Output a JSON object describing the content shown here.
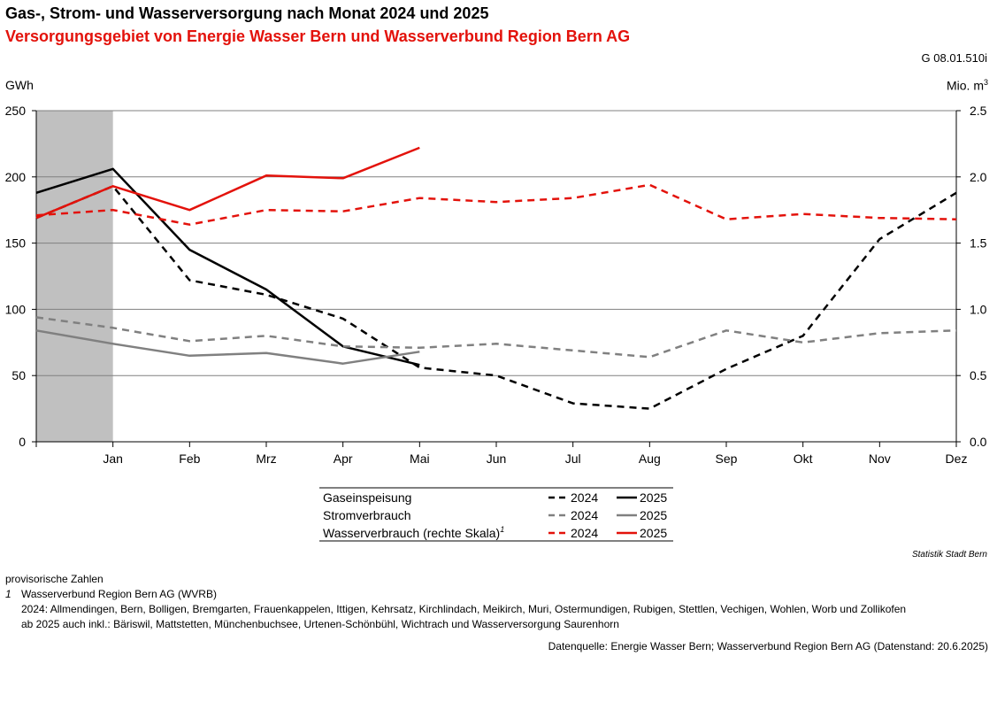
{
  "header": {
    "title": "Gas-, Strom- und Wasserversorgung nach Monat 2024 und 2025",
    "subtitle": "Versorgungsgebiet von Energie Wasser Bern und Wasserverbund Region Bern AG",
    "code": "G 08.01.510i",
    "unit_left": "GWh",
    "unit_right": "Mio. m",
    "unit_right_sup": "3"
  },
  "colors": {
    "gas": "#000000",
    "strom": "#808080",
    "wasser": "#e3120b",
    "shade": "#c0c0c0",
    "grid": "#808080"
  },
  "chart_data": {
    "type": "line",
    "x": [
      "Dez",
      "Jan",
      "Feb",
      "Mrz",
      "Apr",
      "Mai",
      "Jun",
      "Jul",
      "Aug",
      "Sep",
      "Okt",
      "Nov",
      "Dez"
    ],
    "x_tick_labels": [
      "",
      "Jan",
      "Feb",
      "Mrz",
      "Apr",
      "Mai",
      "Jun",
      "Jul",
      "Aug",
      "Sep",
      "Okt",
      "Nov",
      "Dez"
    ],
    "ylim": [
      0,
      250
    ],
    "y_ticks": [
      "0",
      "50",
      "100",
      "150",
      "200",
      "250"
    ],
    "y2lim": [
      0,
      2.5
    ],
    "y2_ticks": [
      "0.0",
      "0.5",
      "1.0",
      "1.5",
      "2.0",
      "2.5"
    ],
    "grid": true,
    "shaded_region": "Dez – Jan",
    "series": [
      {
        "name": "Gaseinspeisung 2024",
        "axis": "left",
        "style": "dashed",
        "color": "#000000",
        "values": [
          169,
          193,
          122,
          111,
          93,
          56,
          50,
          29,
          25,
          55,
          80,
          153,
          188
        ]
      },
      {
        "name": "Gaseinspeisung 2025",
        "axis": "left",
        "style": "solid",
        "color": "#000000",
        "values": [
          188,
          206,
          145,
          115,
          72,
          58,
          null,
          null,
          null,
          null,
          null,
          null,
          null
        ]
      },
      {
        "name": "Stromverbrauch 2024",
        "axis": "left",
        "style": "dashed",
        "color": "#808080",
        "values": [
          94,
          86,
          76,
          80,
          72,
          71,
          74,
          69,
          64,
          84,
          75,
          82,
          84
        ]
      },
      {
        "name": "Stromverbrauch 2025",
        "axis": "left",
        "style": "solid",
        "color": "#808080",
        "values": [
          84,
          74,
          65,
          67,
          59,
          68,
          null,
          null,
          null,
          null,
          null,
          null,
          null
        ]
      },
      {
        "name": "Wasserverbrauch 2024",
        "axis": "right",
        "style": "dashed",
        "color": "#e3120b",
        "values": [
          1.71,
          1.75,
          1.64,
          1.75,
          1.74,
          1.84,
          1.81,
          1.84,
          1.94,
          1.68,
          1.72,
          1.69,
          1.68
        ]
      },
      {
        "name": "Wasserverbrauch 2025",
        "axis": "right",
        "style": "solid",
        "color": "#e3120b",
        "values": [
          1.69,
          1.93,
          1.75,
          2.01,
          1.99,
          2.22,
          null,
          null,
          null,
          null,
          null,
          null,
          null
        ]
      }
    ]
  },
  "legend": {
    "rows": [
      {
        "label": "Gaseinspeisung",
        "sup": "",
        "color": "#000000",
        "y2024": "2024",
        "y2025": "2025"
      },
      {
        "label": "Stromverbrauch",
        "sup": "",
        "color": "#808080",
        "y2024": "2024",
        "y2025": "2025"
      },
      {
        "label": "Wasserverbrauch (rechte Skala)",
        "sup": "1",
        "color": "#e3120b",
        "y2024": "2024",
        "y2025": "2025"
      }
    ]
  },
  "credit": "Statistik Stadt Bern",
  "footnotes": {
    "provisional": "provisorische Zahlen",
    "fn_number": "1",
    "fn_line1": "Wasserverbund Region Bern AG (WVRB)",
    "fn_line2": "2024: Allmendingen, Bern, Bolligen, Bremgarten, Frauenkappelen, Ittigen, Kehrsatz, Kirchlindach, Meikirch, Muri, Ostermundigen, Rubigen, Stettlen, Vechigen, Wohlen, Worb und Zollikofen",
    "fn_line3": "ab 2025 auch inkl.: Bäriswil, Mattstetten, Münchenbuchsee, Urtenen-Schönbühl, Wichtrach und Wasserversorgung Saurenhorn"
  },
  "source": "Datenquelle: Energie Wasser Bern; Wasserverbund Region Bern AG (Datenstand: 20.6.2025)"
}
